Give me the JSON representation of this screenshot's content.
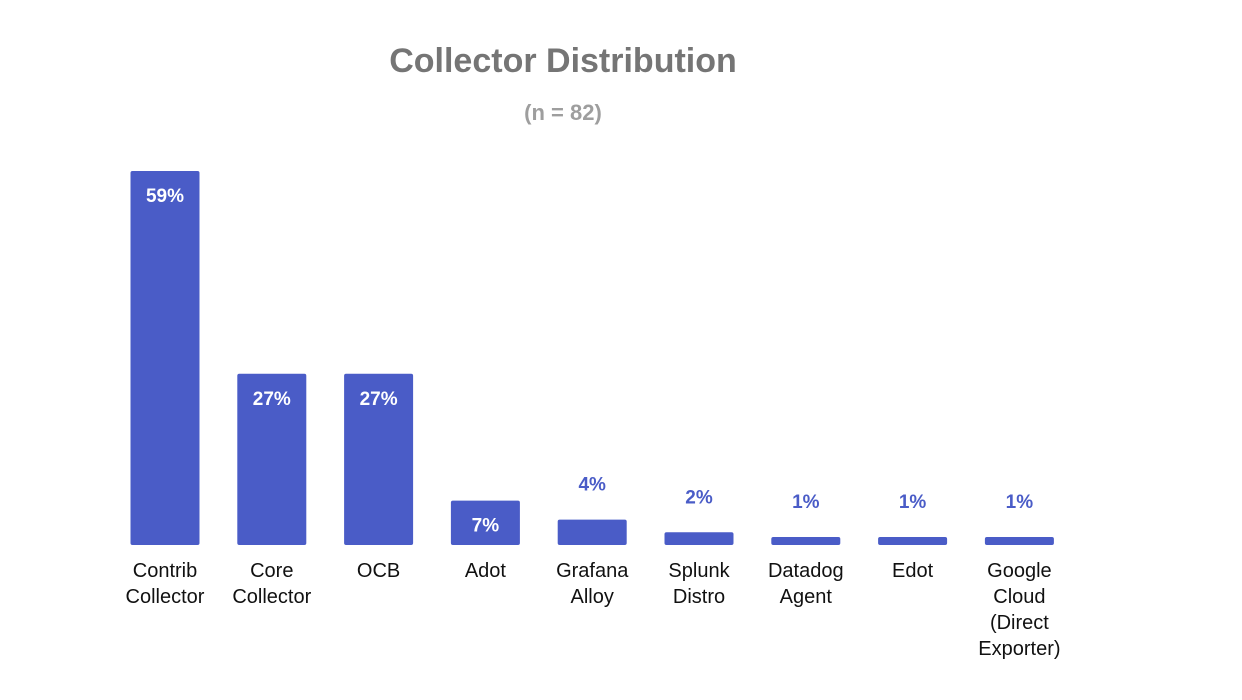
{
  "chart_data": {
    "type": "bar",
    "title": "Collector Distribution",
    "subtitle": "(n = 82)",
    "categories": [
      [
        "Contrib",
        "Collector"
      ],
      [
        "Core",
        "Collector"
      ],
      [
        "OCB"
      ],
      [
        "Adot"
      ],
      [
        "Grafana",
        "Alloy"
      ],
      [
        "Splunk",
        "Distro"
      ],
      [
        "Datadog",
        "Agent"
      ],
      [
        "Edot"
      ],
      [
        "Google",
        "Cloud",
        "(Direct",
        "Exporter)"
      ]
    ],
    "values": [
      59,
      27,
      27,
      7,
      4,
      2,
      1,
      1,
      1
    ],
    "value_labels": [
      "59%",
      "27%",
      "27%",
      "7%",
      "4%",
      "2%",
      "1%",
      "1%",
      "1%"
    ],
    "ylim": [
      0,
      59
    ],
    "grid": false,
    "legend": "none",
    "bar_color": "#4a5cc7",
    "label_outside_color": "#4a5cc7"
  }
}
